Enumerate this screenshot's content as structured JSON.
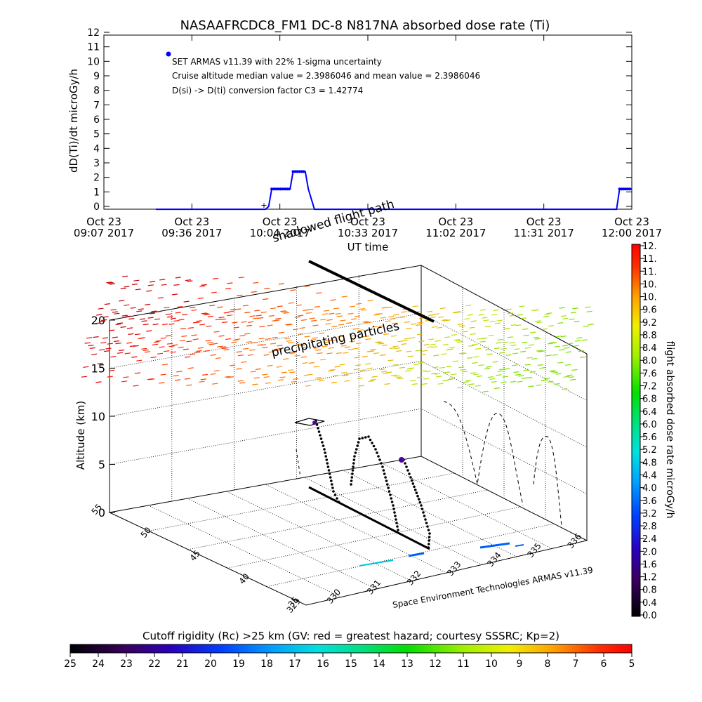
{
  "title": "NASAAFRCDC8_FM1 DC-8    N817NA absorbed dose rate (Ti)",
  "top_chart": {
    "ylabel": "dD(Ti)/dt microGy/h",
    "xlabel": "UT time",
    "legend_lines": [
      "SET ARMAS v11.39 with 22% 1-sigma uncertainty",
      "Cruise altitude median value = 2.3986046 and mean value = 2.3986046",
      "D(si) -> D(ti) conversion factor C3 = 1.42774"
    ],
    "y_ticks": [
      "0",
      "1",
      "2",
      "3",
      "4",
      "5",
      "6",
      "7",
      "8",
      "9",
      "10",
      "11",
      "12"
    ],
    "x_ticks": [
      {
        "l1": "Oct 23",
        "l2": "09:07 2017"
      },
      {
        "l1": "Oct 23",
        "l2": "09:36 2017"
      },
      {
        "l1": "Oct 23",
        "l2": "10:04 2017"
      },
      {
        "l1": "Oct 23",
        "l2": "10:33 2017"
      },
      {
        "l1": "Oct 23",
        "l2": "11:02 2017"
      },
      {
        "l1": "Oct 23",
        "l2": "11:31 2017"
      },
      {
        "l1": "Oct 23",
        "l2": "12:00 2017"
      }
    ]
  },
  "chart_data": [
    {
      "type": "line",
      "title": "NASAAFRCDC8_FM1 DC-8    N817NA absorbed dose rate (Ti)",
      "xlabel": "UT time",
      "ylabel": "dD(Ti)/dt microGy/h",
      "xlim": [
        "09:07",
        "12:00"
      ],
      "ylim": [
        0,
        12
      ],
      "series": [
        {
          "x": [
            "09:24",
            "10:00",
            "10:01",
            "10:02",
            "10:05",
            "10:08",
            "10:09",
            "10:13",
            "10:14",
            "10:16",
            "11:55",
            "11:56",
            "11:58",
            "12:00"
          ],
          "values": [
            -0.2,
            -0.2,
            0.0,
            1.2,
            1.2,
            1.2,
            2.4,
            2.4,
            1.2,
            -0.2,
            -0.2,
            1.2,
            1.2,
            1.2
          ]
        }
      ],
      "legend_marker_y": 10.5,
      "color": "#0000ff"
    },
    {
      "type": "3d-trajectory",
      "zlabel": "Altitude (km)",
      "z_ticks": [
        "0",
        "5",
        "10",
        "15",
        "20"
      ],
      "x_ticks": [
        "329",
        "330",
        "331",
        "332",
        "333",
        "334",
        "335",
        "336"
      ],
      "y_ticks": [
        "35",
        "40",
        "45",
        "50",
        "55"
      ],
      "annotations": [
        "shadowed flight path",
        "precipitating particles"
      ],
      "footer": "Space Environment Technologies ARMAS v11.39"
    }
  ],
  "right_colorbar": {
    "label": "flight absorbed dose rate microGy/h",
    "ticks": [
      "0.0",
      "0.4",
      "0.8",
      "1.2",
      "1.6",
      "2.0",
      "2.4",
      "2.8",
      "3.2",
      "3.6",
      "4.0",
      "4.4",
      "4.8",
      "5.2",
      "5.6",
      "6.0",
      "6.4",
      "6.8",
      "7.2",
      "7.6",
      "8.0",
      "8.4",
      "8.8",
      "9.2",
      "9.6",
      "10.",
      "10.",
      "11.",
      "11.",
      "12."
    ]
  },
  "bottom_colorbar": {
    "label": "Cutoff rigidity (Rc) >25 km (GV: red = greatest hazard; courtesy SSSRC; Kp=2)",
    "ticks": [
      "25",
      "24",
      "23",
      "22",
      "21",
      "20",
      "19",
      "18",
      "17",
      "16",
      "15",
      "14",
      "13",
      "12",
      "11",
      "10",
      "9",
      "8",
      "7",
      "6",
      "5"
    ]
  }
}
